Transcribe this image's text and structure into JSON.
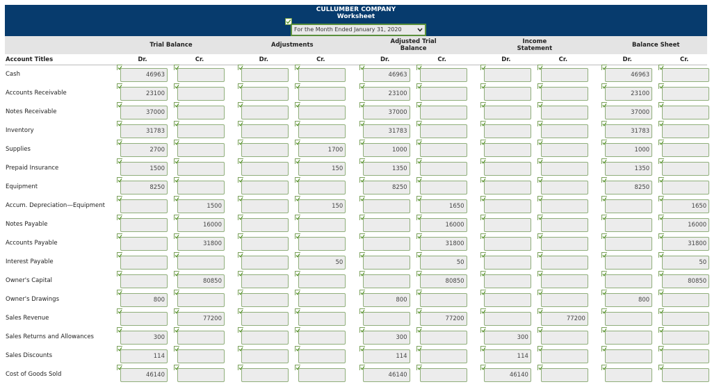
{
  "header": {
    "company": "CULLUMBER COMPANY",
    "title": "Worksheet",
    "period": "For the Month Ended January 31, 2020"
  },
  "groups": [
    "Trial Balance",
    "Adjustments",
    "Adjusted Trial Balance",
    "Income Statement",
    "Balance Sheet"
  ],
  "account_header": "Account Titles",
  "column_labels": [
    "Dr.",
    "Cr.",
    "Dr.",
    "Cr.",
    "Dr.",
    "Cr.",
    "Dr.",
    "Cr.",
    "Dr.",
    "Cr."
  ],
  "rows": [
    {
      "account": "Cash",
      "values": [
        46963,
        null,
        null,
        null,
        46963,
        null,
        null,
        null,
        46963,
        null
      ]
    },
    {
      "account": "Accounts Receivable",
      "values": [
        23100,
        null,
        null,
        null,
        23100,
        null,
        null,
        null,
        23100,
        null
      ]
    },
    {
      "account": "Notes Receivable",
      "values": [
        37000,
        null,
        null,
        null,
        37000,
        null,
        null,
        null,
        37000,
        null
      ]
    },
    {
      "account": "Inventory",
      "values": [
        31783,
        null,
        null,
        null,
        31783,
        null,
        null,
        null,
        31783,
        null
      ]
    },
    {
      "account": "Supplies",
      "values": [
        2700,
        null,
        null,
        1700,
        1000,
        null,
        null,
        null,
        1000,
        null
      ]
    },
    {
      "account": "Prepaid Insurance",
      "values": [
        1500,
        null,
        null,
        150,
        1350,
        null,
        null,
        null,
        1350,
        null
      ]
    },
    {
      "account": "Equipment",
      "values": [
        8250,
        null,
        null,
        null,
        8250,
        null,
        null,
        null,
        8250,
        null
      ]
    },
    {
      "account": "Accum. Depreciation—Equipment",
      "values": [
        null,
        1500,
        null,
        150,
        null,
        1650,
        null,
        null,
        null,
        1650
      ]
    },
    {
      "account": "Notes Payable",
      "values": [
        null,
        16000,
        null,
        null,
        null,
        16000,
        null,
        null,
        null,
        16000
      ]
    },
    {
      "account": "Accounts Payable",
      "values": [
        null,
        31800,
        null,
        null,
        null,
        31800,
        null,
        null,
        null,
        31800
      ]
    },
    {
      "account": "Interest Payable",
      "values": [
        null,
        null,
        null,
        50,
        null,
        50,
        null,
        null,
        null,
        50
      ]
    },
    {
      "account": "Owner's Capital",
      "values": [
        null,
        80850,
        null,
        null,
        null,
        80850,
        null,
        null,
        null,
        80850
      ]
    },
    {
      "account": "Owner's Drawings",
      "values": [
        800,
        null,
        null,
        null,
        800,
        null,
        null,
        null,
        800,
        null
      ]
    },
    {
      "account": "Sales Revenue",
      "values": [
        null,
        77200,
        null,
        null,
        null,
        77200,
        null,
        77200,
        null,
        null
      ]
    },
    {
      "account": "Sales Returns and Allowances",
      "values": [
        300,
        null,
        null,
        null,
        300,
        null,
        300,
        null,
        null,
        null
      ]
    },
    {
      "account": "Sales Discounts",
      "values": [
        114,
        null,
        null,
        null,
        114,
        null,
        114,
        null,
        null,
        null
      ]
    },
    {
      "account": "Cost of Goods Sold",
      "values": [
        46140,
        null,
        null,
        null,
        46140,
        null,
        46140,
        null,
        null,
        null
      ]
    }
  ]
}
